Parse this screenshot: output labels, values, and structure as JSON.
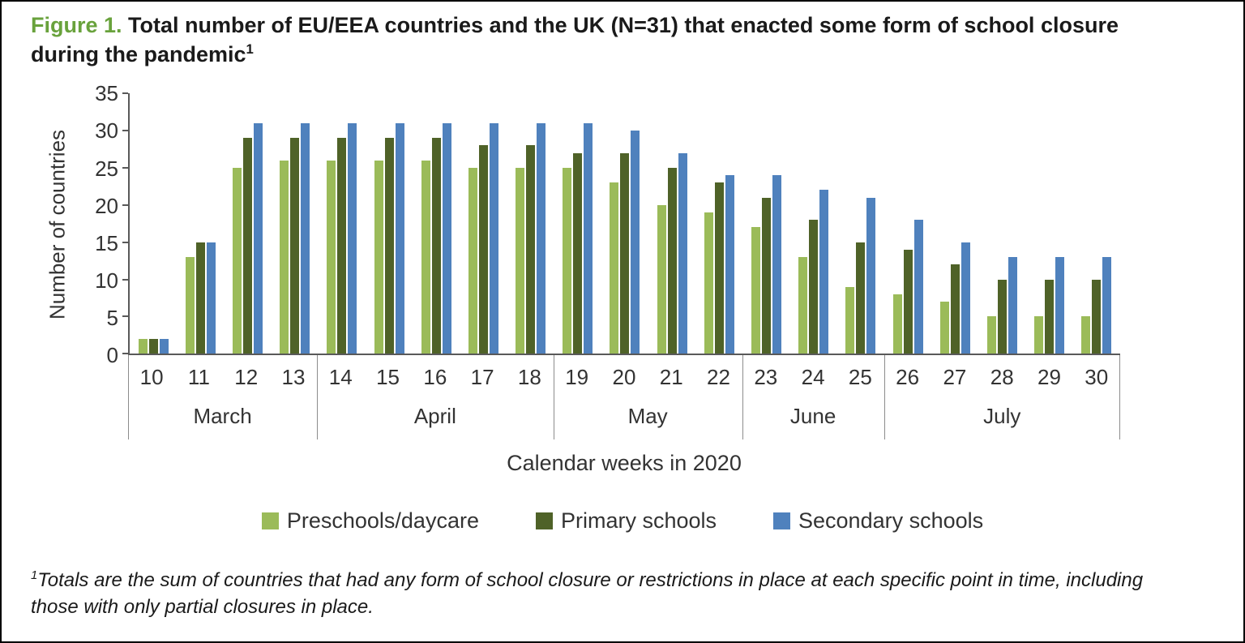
{
  "figure": {
    "label": "Figure 1.",
    "title": "Total number of EU/EEA countries and the UK (N=31) that enacted some form of school closure during the pandemic",
    "title_superscript": "1"
  },
  "footnote": {
    "superscript": "1",
    "text": "Totals are the sum of countries that had any form of school closure or restrictions in place at each specific point in time, including those with only partial closures in place."
  },
  "colors": {
    "figure_label_green": "#69A23C",
    "axis_line": "#595959"
  },
  "chart_data": {
    "type": "bar",
    "title": "",
    "xlabel": "Calendar weeks in 2020",
    "ylabel": "Number of countries",
    "ylim": [
      0,
      35
    ],
    "yticks": [
      0,
      5,
      10,
      15,
      20,
      25,
      30,
      35
    ],
    "grid": false,
    "legend_position": "bottom",
    "categories": [
      "10",
      "11",
      "12",
      "13",
      "14",
      "15",
      "16",
      "17",
      "18",
      "19",
      "20",
      "21",
      "22",
      "23",
      "24",
      "25",
      "26",
      "27",
      "28",
      "29",
      "30"
    ],
    "month_groups": [
      {
        "label": "March",
        "weeks": [
          "10",
          "11",
          "12",
          "13"
        ]
      },
      {
        "label": "April",
        "weeks": [
          "14",
          "15",
          "16",
          "17",
          "18"
        ]
      },
      {
        "label": "May",
        "weeks": [
          "19",
          "20",
          "21",
          "22"
        ]
      },
      {
        "label": "June",
        "weeks": [
          "23",
          "24",
          "25"
        ]
      },
      {
        "label": "July",
        "weeks": [
          "26",
          "27",
          "28",
          "29",
          "30"
        ]
      }
    ],
    "series": [
      {
        "name": "Preschools/daycare",
        "color": "#9BBB59",
        "values": [
          2,
          13,
          25,
          26,
          26,
          26,
          26,
          25,
          25,
          25,
          23,
          20,
          19,
          17,
          13,
          9,
          8,
          7,
          5,
          5,
          5
        ]
      },
      {
        "name": "Primary schools",
        "color": "#4F6228",
        "values": [
          2,
          15,
          29,
          29,
          29,
          29,
          29,
          28,
          28,
          27,
          27,
          25,
          23,
          21,
          18,
          15,
          14,
          12,
          10,
          10,
          10
        ]
      },
      {
        "name": "Secondary schools",
        "color": "#4F81BD",
        "values": [
          2,
          15,
          31,
          31,
          31,
          31,
          31,
          31,
          31,
          31,
          30,
          27,
          24,
          24,
          22,
          21,
          18,
          15,
          13,
          13,
          13
        ]
      }
    ]
  }
}
